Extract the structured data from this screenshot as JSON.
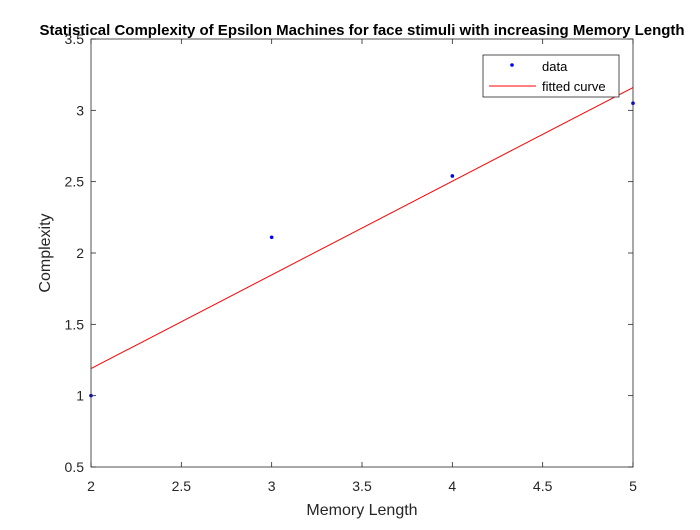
{
  "chart_data": {
    "type": "scatter",
    "title": "Statistical Complexity of Epsilon Machines for face stimuli with increasing Memory Length",
    "xlabel": "Memory Length",
    "ylabel": "Complexity",
    "xlim": [
      2,
      5
    ],
    "ylim": [
      0.5,
      3.5
    ],
    "xticks": [
      "2",
      "2.5",
      "3",
      "3.5",
      "4",
      "4.5",
      "5"
    ],
    "yticks": [
      "0.5",
      "1",
      "1.5",
      "2",
      "2.5",
      "3",
      "3.5"
    ],
    "grid": false,
    "legend_position": "top-right",
    "series": [
      {
        "name": "data",
        "style": "points",
        "color": "#0000ff",
        "x": [
          2,
          3,
          4,
          5
        ],
        "y": [
          1.0,
          2.11,
          2.54,
          3.05
        ]
      },
      {
        "name": "fitted curve",
        "style": "line",
        "color": "#ff0000",
        "x": [
          2,
          5
        ],
        "y": [
          1.19,
          3.16
        ]
      }
    ]
  }
}
